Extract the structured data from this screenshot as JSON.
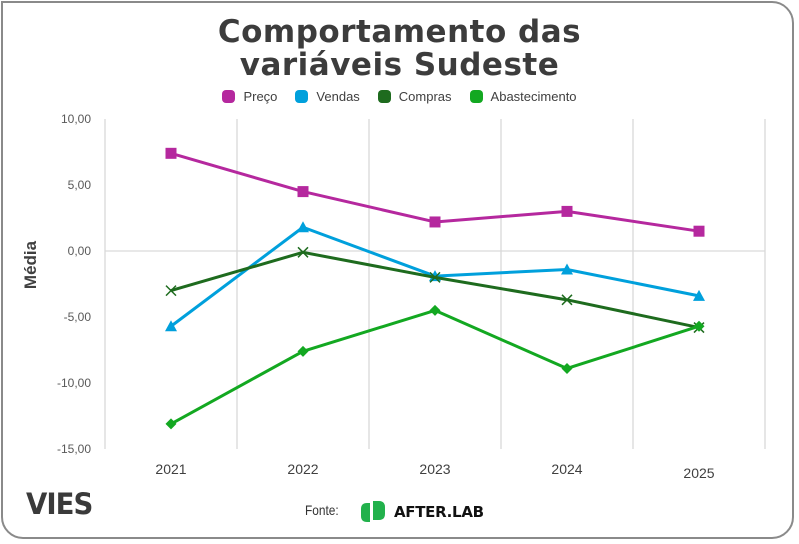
{
  "chart_data": {
    "type": "line",
    "title": "Comportamento das variáveis Sudeste",
    "title_lines": [
      "Comportamento das",
      "variáveis Sudeste"
    ],
    "xlabel": "",
    "ylabel": "Média",
    "categories": [
      "2021",
      "2022",
      "2023",
      "2024",
      "2025"
    ],
    "ylim": [
      -15,
      10
    ],
    "yticks": [
      10,
      5,
      0,
      -5,
      -10,
      -15
    ],
    "ytick_labels": [
      "10,00",
      "5,00",
      "0,00",
      "-5,00",
      "-10,00",
      "-15,00"
    ],
    "grid": true,
    "legend_position": "top",
    "series": [
      {
        "name": "Preço",
        "color": "#B5289E",
        "marker": "square",
        "values": [
          7.4,
          4.5,
          2.2,
          3.0,
          1.5
        ]
      },
      {
        "name": "Vendas",
        "color": "#00A0DC",
        "marker": "triangle",
        "values": [
          -5.7,
          1.8,
          -1.9,
          -1.4,
          -3.4
        ]
      },
      {
        "name": "Compras",
        "color": "#1E6B1E",
        "marker": "x",
        "values": [
          -3.0,
          -0.1,
          -2.0,
          -3.7,
          -5.8
        ]
      },
      {
        "name": "Abastecimento",
        "color": "#13A821",
        "marker": "diamond",
        "values": [
          -13.1,
          -7.6,
          -4.5,
          -8.9,
          -5.7
        ]
      }
    ]
  },
  "footer": {
    "brand": "VIES",
    "source_label": "Fonte:",
    "source_name": "AFTER.LAB",
    "source_logo_color": "#22B14C"
  }
}
